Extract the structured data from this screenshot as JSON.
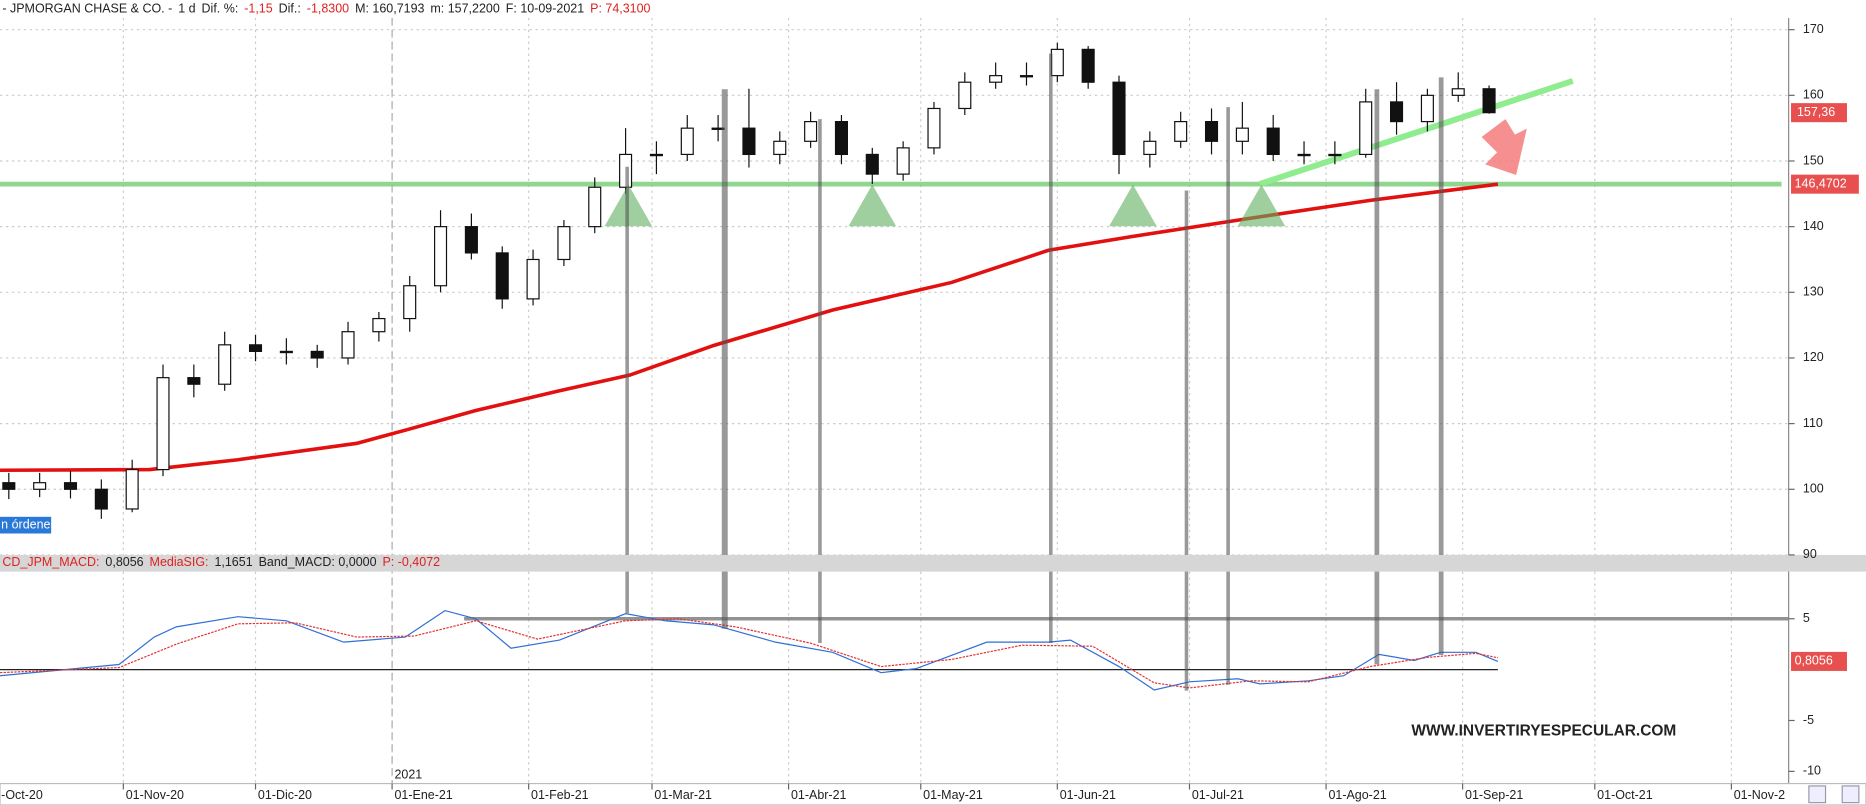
{
  "chart_data": [
    {
      "type": "candlestick",
      "header": [
        {
          "text": "- JPMORGAN CHASE & CO. -",
          "color": "#222"
        },
        {
          "text": "1 d",
          "color": "#222"
        },
        {
          "text": "Dif. %:",
          "color": "#222"
        },
        {
          "text": "-1,15",
          "color": "#e02020"
        },
        {
          "text": "Dif.:",
          "color": "#222"
        },
        {
          "text": "-1,8300",
          "color": "#e02020"
        },
        {
          "text": "M: 160,7193",
          "color": "#222"
        },
        {
          "text": "m: 157,2200",
          "color": "#222"
        },
        {
          "text": "F: 10-09-2021",
          "color": "#222"
        },
        {
          "text": "P: 74,3100",
          "color": "#e02020"
        }
      ],
      "x": [
        5,
        12,
        19,
        26,
        33,
        40,
        47,
        54,
        61,
        68,
        75,
        82,
        89,
        96,
        103,
        110,
        117,
        124,
        131,
        138,
        145,
        152,
        159,
        166,
        173,
        180,
        187,
        194,
        201,
        208,
        215,
        222,
        229,
        236,
        243,
        250,
        257,
        264,
        271,
        278,
        285,
        292,
        299,
        306,
        313,
        320,
        327,
        334,
        341
      ],
      "open": [
        101,
        100,
        101,
        100,
        97,
        103,
        117,
        116,
        122,
        121,
        121,
        120,
        124,
        126,
        131,
        140,
        136,
        129,
        135,
        140,
        146,
        151,
        151,
        155,
        155,
        151,
        153,
        156,
        151,
        148,
        152,
        158,
        162,
        163,
        163,
        167,
        162,
        151,
        153,
        156,
        153,
        155,
        151,
        151,
        151,
        159,
        156,
        160,
        161
      ],
      "high": [
        102.5,
        102.5,
        102.8,
        101.5,
        104.5,
        119,
        119,
        124,
        123.5,
        123,
        122,
        125.5,
        127,
        132.5,
        142.5,
        142,
        137,
        136.5,
        141,
        147.5,
        155,
        153,
        157,
        157,
        161,
        154.5,
        157.5,
        157,
        152,
        153,
        159,
        163.5,
        165,
        165,
        168,
        167.5,
        163,
        154.5,
        157.5,
        158,
        159,
        157,
        153,
        153,
        161,
        162,
        161,
        163.5,
        161.5
      ],
      "low": [
        98.5,
        98.8,
        98.6,
        95.5,
        96.5,
        102,
        114,
        115,
        119.5,
        119,
        118.5,
        119,
        122.5,
        124,
        130,
        135,
        127.5,
        128,
        134,
        139,
        145,
        148,
        150,
        153,
        149,
        149.5,
        152,
        149.5,
        146.5,
        147,
        151,
        157,
        161,
        161.5,
        162,
        161,
        148,
        149,
        152,
        151,
        151,
        150,
        149.5,
        149.5,
        150.5,
        154,
        154.5,
        159,
        157.2
      ],
      "close": [
        100,
        101,
        100,
        97,
        103,
        117,
        116,
        122,
        121,
        121,
        120,
        124,
        126,
        131,
        140,
        136,
        129,
        135,
        140,
        146,
        151,
        151,
        155,
        155,
        151,
        153,
        156,
        151,
        148,
        152,
        158,
        162,
        163,
        163,
        167,
        162,
        151,
        153,
        156,
        153,
        155,
        151,
        151,
        151,
        159,
        156,
        160,
        161,
        157.36
      ],
      "close_label": "157,36",
      "ma": {
        "color": "#e31010",
        "x": [
          3,
          37,
          57,
          84,
          95,
          111,
          130,
          146,
          165,
          192,
          219,
          241,
          260,
          287,
          314,
          343
        ],
        "values": [
          102.9,
          103,
          104.5,
          107,
          109,
          112,
          115,
          117.4,
          121.9,
          127.3,
          131.5,
          136.4,
          138.5,
          141.3,
          144,
          146.4702
        ],
        "value_label": "146,4702"
      },
      "support": 146.4702,
      "trendline": {
        "x": [
          289,
          360
        ],
        "y": [
          146.5,
          162.2
        ]
      },
      "notes": [
        "n órdenes"
      ],
      "xlim": [
        3,
        409
      ],
      "ylim": [
        90,
        171.8
      ],
      "yticks": [
        90,
        100,
        110,
        120,
        130,
        140,
        150,
        160,
        170
      ],
      "grid": true
    },
    {
      "type": "line",
      "header": [
        {
          "text": "CD_JPM_MACD:",
          "color": "#e02020"
        },
        {
          "text": "0,8056",
          "color": "#222"
        },
        {
          "text": "MediaSIG:",
          "color": "#e02020"
        },
        {
          "text": "1,1651",
          "color": "#222"
        },
        {
          "text": "Band_MACD: 0,0000",
          "color": "#222"
        },
        {
          "text": "P: -0,4072",
          "color": "#e02020"
        }
      ],
      "series": [
        {
          "color": "#2f6fd6",
          "x": [
            3,
            30,
            38,
            43,
            57,
            68,
            81,
            95,
            104,
            111,
            119,
            130,
            145,
            154,
            165,
            179,
            192,
            203,
            211,
            227,
            241,
            246,
            257,
            265,
            273,
            284,
            289,
            300,
            308,
            316,
            324,
            330,
            338,
            343
          ],
          "values": [
            -0.6,
            0.5,
            3.2,
            4.2,
            5.2,
            4.8,
            2.7,
            3.2,
            5.8,
            5,
            2.1,
            2.9,
            5.5,
            4.8,
            4.4,
            2.7,
            1.7,
            -0.3,
            0.1,
            2.7,
            2.7,
            2.9,
            0.3,
            -2,
            -1.2,
            -0.9,
            -1.4,
            -1.1,
            -0.6,
            1.5,
            0.9,
            1.7,
            1.7,
            0.8056
          ],
          "value_label": "0,8056",
          "dash": false
        },
        {
          "color": "#e33030",
          "x": [
            3,
            30,
            43,
            57,
            70,
            84,
            97,
            111,
            125,
            145,
            157,
            170,
            187,
            203,
            219,
            235,
            251,
            265,
            273,
            287,
            300,
            314,
            327,
            338,
            343
          ],
          "values": [
            -0.3,
            0.2,
            2.5,
            4.5,
            4.6,
            3.2,
            3.3,
            4.8,
            3,
            4.8,
            5,
            4.2,
            2.6,
            0.3,
            1,
            2.4,
            2.3,
            -1.3,
            -1.8,
            -1.1,
            -1.2,
            0.3,
            1.2,
            1.6,
            1.1651
          ],
          "dash": true
        }
      ],
      "reference_lines": [
        {
          "value": 0,
          "color": "#222"
        },
        {
          "value": 5,
          "color": "#777"
        }
      ],
      "xlim": [
        3,
        409
      ],
      "ylim": [
        -11.2,
        9.4
      ],
      "yticks": [
        5,
        -5,
        -10
      ],
      "xticks": [
        {
          "value": 0,
          "label": "-Oct-20"
        },
        {
          "value": 31,
          "label": "01-Nov-20"
        },
        {
          "value": 61,
          "label": "01-Dic-20"
        },
        {
          "value": 92,
          "label": "01-Ene-21"
        },
        {
          "value": 123,
          "label": "01-Feb-21"
        },
        {
          "value": 151,
          "label": "01-Mar-21"
        },
        {
          "value": 182,
          "label": "01-Abr-21"
        },
        {
          "value": 212,
          "label": "01-May-21"
        },
        {
          "value": 243,
          "label": "01-Jun-21"
        },
        {
          "value": 273,
          "label": "01-Jul-21"
        },
        {
          "value": 304,
          "label": "01-Ago-21"
        },
        {
          "value": 335,
          "label": "01-Sep-21"
        },
        {
          "value": 365,
          "label": "01-Oct-21"
        },
        {
          "value": 396,
          "label": "01-Nov-2"
        }
      ],
      "year_label": "2021",
      "year_at": 92,
      "watermark": "WWW.INVERTIRYESPECULAR.COM",
      "grid": true
    }
  ]
}
